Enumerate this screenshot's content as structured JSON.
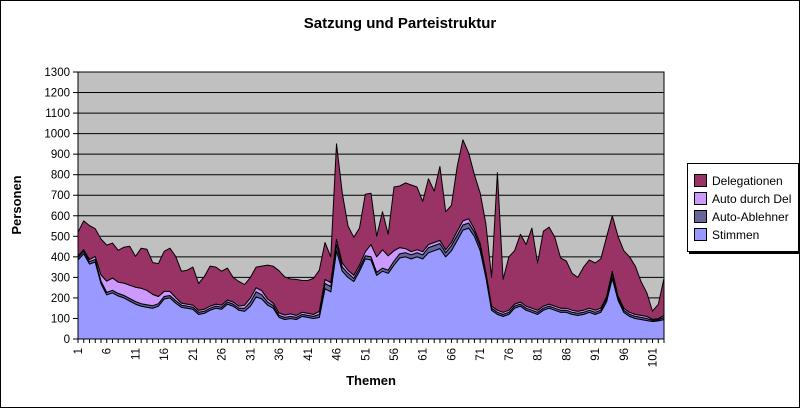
{
  "chart_data": {
    "type": "area",
    "stacked": true,
    "title": "Satzung und Parteistruktur",
    "xlabel": "Themen",
    "ylabel": "Personen",
    "ylim": [
      0,
      1300
    ],
    "ytick_step": 100,
    "n_categories": 103,
    "xtick_labels": [
      "1",
      "6",
      "11",
      "16",
      "21",
      "26",
      "31",
      "36",
      "41",
      "46",
      "51",
      "56",
      "61",
      "66",
      "71",
      "76",
      "81",
      "86",
      "91",
      "96",
      "101"
    ],
    "xtick_interval": 5,
    "grid": "horizontal",
    "plot_background": "#C0C0C0",
    "gridline_color": "#000000",
    "area_outline_color": "#000000",
    "legend_position": "right",
    "series": [
      {
        "name": "Stimmen",
        "color": "#9999FF",
        "values": [
          385,
          415,
          365,
          375,
          270,
          215,
          225,
          210,
          200,
          185,
          170,
          160,
          155,
          150,
          160,
          195,
          200,
          175,
          155,
          150,
          145,
          120,
          125,
          140,
          150,
          145,
          170,
          160,
          140,
          135,
          160,
          205,
          195,
          165,
          150,
          105,
          95,
          100,
          95,
          110,
          105,
          100,
          105,
          245,
          230,
          430,
          330,
          300,
          280,
          330,
          390,
          385,
          310,
          330,
          320,
          360,
          395,
          400,
          390,
          400,
          390,
          420,
          430,
          440,
          400,
          430,
          480,
          530,
          540,
          500,
          430,
          300,
          140,
          120,
          110,
          120,
          150,
          160,
          140,
          130,
          120,
          140,
          150,
          140,
          130,
          130,
          120,
          115,
          120,
          130,
          120,
          130,
          180,
          295,
          190,
          130,
          110,
          100,
          95,
          90,
          85,
          88,
          95
        ]
      },
      {
        "name": "Auto-Ablehner",
        "color": "#666699",
        "values": [
          12,
          12,
          12,
          12,
          12,
          12,
          12,
          12,
          12,
          12,
          12,
          12,
          12,
          12,
          12,
          12,
          12,
          12,
          10,
          10,
          10,
          10,
          10,
          10,
          10,
          10,
          10,
          10,
          10,
          15,
          20,
          25,
          20,
          15,
          12,
          10,
          10,
          10,
          10,
          10,
          10,
          10,
          15,
          25,
          25,
          30,
          20,
          20,
          15,
          15,
          15,
          15,
          15,
          15,
          15,
          20,
          20,
          20,
          20,
          20,
          20,
          25,
          25,
          25,
          20,
          25,
          25,
          25,
          25,
          20,
          20,
          15,
          10,
          10,
          10,
          10,
          10,
          10,
          10,
          10,
          10,
          10,
          10,
          10,
          10,
          10,
          10,
          10,
          10,
          10,
          10,
          10,
          15,
          20,
          10,
          10,
          10,
          10,
          10,
          10,
          6,
          6,
          10
        ]
      },
      {
        "name": "Auto durch Del",
        "color": "#CC99FF",
        "values": [
          8,
          8,
          10,
          15,
          30,
          55,
          60,
          55,
          60,
          65,
          70,
          75,
          70,
          55,
          35,
          25,
          20,
          15,
          10,
          10,
          10,
          10,
          10,
          10,
          10,
          10,
          10,
          10,
          10,
          15,
          20,
          20,
          20,
          15,
          12,
          12,
          12,
          12,
          10,
          10,
          10,
          10,
          15,
          20,
          20,
          25,
          20,
          15,
          15,
          15,
          20,
          60,
          75,
          90,
          70,
          50,
          30,
          20,
          15,
          15,
          15,
          15,
          15,
          15,
          15,
          15,
          20,
          20,
          20,
          15,
          15,
          10,
          10,
          10,
          10,
          10,
          10,
          10,
          10,
          10,
          10,
          10,
          10,
          10,
          10,
          10,
          10,
          10,
          10,
          10,
          10,
          10,
          10,
          15,
          10,
          10,
          10,
          10,
          10,
          10,
          5,
          5,
          10
        ]
      },
      {
        "name": "Delegationen",
        "color": "#993366",
        "values": [
          115,
          140,
          165,
          135,
          175,
          175,
          170,
          155,
          175,
          190,
          150,
          195,
          200,
          155,
          160,
          195,
          210,
          200,
          155,
          165,
          185,
          130,
          160,
          195,
          180,
          165,
          155,
          120,
          120,
          100,
          100,
          100,
          120,
          165,
          180,
          205,
          185,
          170,
          175,
          155,
          160,
          175,
          200,
          180,
          125,
          465,
          340,
          215,
          185,
          180,
          280,
          250,
          100,
          185,
          105,
          310,
          300,
          320,
          325,
          305,
          245,
          320,
          250,
          360,
          185,
          180,
          315,
          395,
          320,
          265,
          245,
          235,
          140,
          670,
          160,
          260,
          260,
          330,
          300,
          390,
          230,
          365,
          375,
          335,
          245,
          230,
          180,
          165,
          210,
          235,
          230,
          240,
          290,
          270,
          290,
          280,
          270,
          235,
          165,
          115,
          40,
          70,
          180
        ]
      }
    ],
    "legend": {
      "items": [
        {
          "label": "Delegationen",
          "color": "#993366"
        },
        {
          "label": "Auto durch Del",
          "color": "#CC99FF"
        },
        {
          "label": "Auto-Ablehner",
          "color": "#666699"
        },
        {
          "label": "Stimmen",
          "color": "#9999FF"
        }
      ]
    }
  }
}
